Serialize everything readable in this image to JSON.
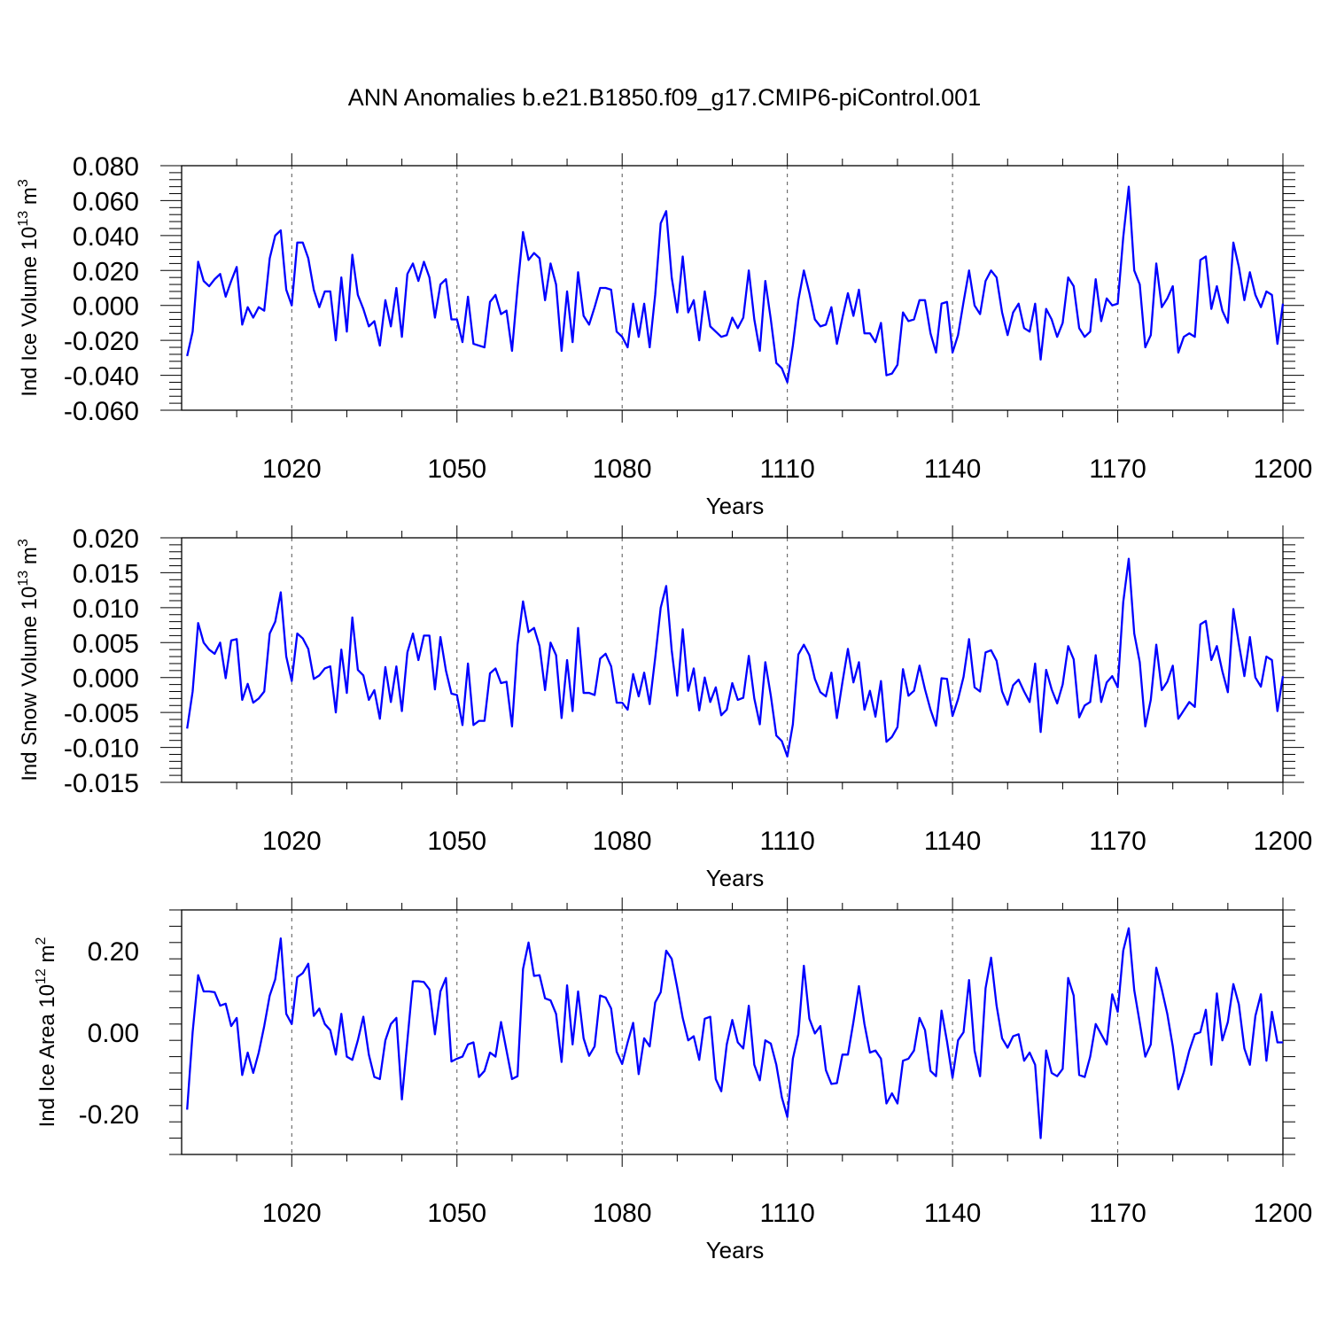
{
  "title": "ANN Anomalies b.e21.B1850.f09_g17.CMIP6-piControl.001",
  "colors": {
    "line": "#0000ff",
    "axis": "#000000",
    "grid": "#555555"
  },
  "chart_data": [
    {
      "type": "line",
      "ylabel": "Ind Ice Volume",
      "unit": {
        "base": "10",
        "exp": "13",
        "units": "m",
        "units_exp": "3"
      },
      "xlabel": "Years",
      "xlim": [
        1001,
        1200
      ],
      "ylim": [
        -0.06,
        0.08
      ],
      "xticks": [
        1020,
        1050,
        1080,
        1110,
        1140,
        1170,
        1200
      ],
      "xtick_labels": [
        "1020",
        "1050",
        "1080",
        "1110",
        "1140",
        "1170",
        "1200"
      ],
      "yticks": [
        -0.06,
        -0.04,
        -0.02,
        0.0,
        0.02,
        0.04,
        0.06,
        0.08
      ],
      "ytick_labels": [
        "-0.060",
        "-0.040",
        "-0.020",
        "0.000",
        "0.020",
        "0.040",
        "0.060",
        "0.080"
      ],
      "x_start": 1001,
      "series": [
        {
          "name": "Ind Ice Volume",
          "values": [
            -0.029,
            -0.015,
            0.025,
            0.014,
            0.011,
            0.015,
            0.018,
            0.005,
            0.014,
            0.022,
            -0.011,
            -0.001,
            -0.007,
            -0.001,
            -0.003,
            0.027,
            0.04,
            0.043,
            0.009,
            0.0,
            0.036,
            0.036,
            0.027,
            0.009,
            -0.001,
            0.008,
            0.008,
            -0.02,
            0.016,
            -0.015,
            0.029,
            0.006,
            -0.002,
            -0.012,
            -0.009,
            -0.023,
            0.003,
            -0.012,
            0.01,
            -0.018,
            0.018,
            0.024,
            0.014,
            0.025,
            0.016,
            -0.007,
            0.012,
            0.015,
            -0.008,
            -0.008,
            -0.021,
            0.005,
            -0.022,
            -0.023,
            -0.024,
            0.002,
            0.006,
            -0.005,
            -0.003,
            -0.026,
            0.01,
            0.042,
            0.026,
            0.03,
            0.027,
            0.003,
            0.024,
            0.012,
            -0.026,
            0.008,
            -0.021,
            0.019,
            -0.006,
            -0.011,
            -0.001,
            0.01,
            0.01,
            0.009,
            -0.015,
            -0.018,
            -0.024,
            0.001,
            -0.018,
            0.001,
            -0.024,
            0.006,
            0.047,
            0.054,
            0.016,
            -0.004,
            0.028,
            -0.004,
            0.003,
            -0.02,
            0.008,
            -0.012,
            -0.015,
            -0.018,
            -0.017,
            -0.007,
            -0.013,
            -0.007,
            0.02,
            -0.008,
            -0.026,
            0.014,
            -0.008,
            -0.033,
            -0.036,
            -0.044,
            -0.023,
            0.003,
            0.02,
            0.007,
            -0.008,
            -0.012,
            -0.011,
            -0.001,
            -0.022,
            -0.007,
            0.007,
            -0.006,
            0.009,
            -0.016,
            -0.016,
            -0.021,
            -0.01,
            -0.04,
            -0.039,
            -0.034,
            -0.004,
            -0.009,
            -0.008,
            0.003,
            0.003,
            -0.016,
            -0.027,
            0.001,
            0.002,
            -0.027,
            -0.017,
            0.002,
            0.02,
            0.0,
            -0.005,
            0.014,
            0.02,
            0.016,
            -0.004,
            -0.017,
            -0.004,
            0.001,
            -0.013,
            -0.015,
            0.001,
            -0.031,
            -0.002,
            -0.008,
            -0.018,
            -0.01,
            0.016,
            0.011,
            -0.013,
            -0.018,
            -0.015,
            0.015,
            -0.009,
            0.004,
            0.0,
            0.001,
            0.039,
            0.068,
            0.02,
            0.012,
            -0.024,
            -0.017,
            0.024,
            -0.001,
            0.004,
            0.011,
            -0.027,
            -0.018,
            -0.016,
            -0.018,
            0.026,
            0.028,
            -0.002,
            0.011,
            -0.003,
            -0.01,
            0.036,
            0.022,
            0.003,
            0.019,
            0.006,
            -0.001,
            0.008,
            0.006,
            -0.022,
            0.001
          ]
        }
      ]
    },
    {
      "type": "line",
      "ylabel": "Ind Snow Volume",
      "unit": {
        "base": "10",
        "exp": "13",
        "units": "m",
        "units_exp": "3"
      },
      "xlabel": "Years",
      "xlim": [
        1001,
        1200
      ],
      "ylim": [
        -0.015,
        0.02
      ],
      "xticks": [
        1020,
        1050,
        1080,
        1110,
        1140,
        1170,
        1200
      ],
      "xtick_labels": [
        "1020",
        "1050",
        "1080",
        "1110",
        "1140",
        "1170",
        "1200"
      ],
      "yticks": [
        -0.015,
        -0.01,
        -0.005,
        0.0,
        0.005,
        0.01,
        0.015,
        0.02
      ],
      "ytick_labels": [
        "-0.015",
        "-0.010",
        "-0.005",
        "0.000",
        "0.005",
        "0.010",
        "0.015",
        "0.020"
      ],
      "x_start": 1001,
      "series": [
        {
          "name": "Ind Snow Volume",
          "values": [
            -0.0073,
            -0.002,
            0.0078,
            0.005,
            0.004,
            0.0034,
            0.005,
            -0.0001,
            0.0053,
            0.0055,
            -0.0032,
            -0.0009,
            -0.0036,
            -0.003,
            -0.002,
            0.0063,
            0.008,
            0.0122,
            0.003,
            -0.0005,
            0.0063,
            0.0056,
            0.0041,
            -0.0002,
            0.0003,
            0.0013,
            0.0016,
            -0.005,
            0.004,
            -0.0022,
            0.0086,
            0.0011,
            0.0003,
            -0.0032,
            -0.0018,
            -0.0059,
            0.0015,
            -0.0035,
            0.0016,
            -0.0048,
            0.0036,
            0.0063,
            0.0025,
            0.006,
            0.006,
            -0.0017,
            0.0058,
            0.001,
            -0.0023,
            -0.0025,
            -0.0068,
            0.002,
            -0.0068,
            -0.0062,
            -0.0062,
            0.0006,
            0.0013,
            -0.0008,
            -0.0006,
            -0.007,
            0.0047,
            0.0109,
            0.0065,
            0.0071,
            0.0045,
            -0.0018,
            0.005,
            0.0032,
            -0.0058,
            0.0025,
            -0.0048,
            0.0071,
            -0.0022,
            -0.0022,
            -0.0025,
            0.0027,
            0.0034,
            0.0016,
            -0.0036,
            -0.0036,
            -0.0046,
            0.0005,
            -0.0027,
            0.0007,
            -0.0038,
            0.0028,
            0.01,
            0.0131,
            0.0039,
            -0.0026,
            0.0069,
            -0.0019,
            0.0013,
            -0.0047,
            0.0,
            -0.0035,
            -0.0014,
            -0.0054,
            -0.0046,
            -0.0008,
            -0.0032,
            -0.0029,
            0.0031,
            -0.003,
            -0.0067,
            0.0022,
            -0.0026,
            -0.0083,
            -0.0091,
            -0.0113,
            -0.0067,
            0.0033,
            0.0047,
            0.0032,
            -0.0002,
            -0.0021,
            -0.0027,
            0.0007,
            -0.0058,
            -0.0007,
            0.0041,
            -0.0007,
            0.0022,
            -0.0046,
            -0.0019,
            -0.0056,
            -0.0005,
            -0.0092,
            -0.0085,
            -0.0071,
            0.0012,
            -0.0026,
            -0.0019,
            0.0017,
            -0.0017,
            -0.0046,
            -0.0069,
            -0.0001,
            -0.0002,
            -0.0055,
            -0.0031,
            0.0001,
            0.0055,
            -0.0014,
            -0.002,
            0.0036,
            0.0039,
            0.0024,
            -0.002,
            -0.0039,
            -0.0011,
            -0.0003,
            -0.002,
            -0.0035,
            0.002,
            -0.0078,
            0.0011,
            -0.0017,
            -0.0037,
            -0.001,
            0.0045,
            0.0026,
            -0.0057,
            -0.004,
            -0.0035,
            0.0032,
            -0.0035,
            -0.0007,
            0.0002,
            -0.0014,
            0.0108,
            0.017,
            0.0063,
            0.0022,
            -0.007,
            -0.0032,
            0.0047,
            -0.0018,
            -0.0006,
            0.0017,
            -0.0059,
            -0.0047,
            -0.0035,
            -0.0042,
            0.0076,
            0.0081,
            0.0025,
            0.0045,
            0.0009,
            -0.0021,
            0.0098,
            0.0048,
            0.0002,
            0.0058,
            0.0,
            -0.0013,
            0.003,
            0.0025,
            -0.0048,
            0.0002
          ]
        }
      ]
    },
    {
      "type": "line",
      "ylabel": "Ind Ice Area",
      "unit": {
        "base": "10",
        "exp": "12",
        "units": "m",
        "units_exp": "2"
      },
      "xlabel": "Years",
      "xlim": [
        1001,
        1200
      ],
      "ylim": [
        -0.3,
        0.3
      ],
      "xticks": [
        1020,
        1050,
        1080,
        1110,
        1140,
        1170,
        1200
      ],
      "xtick_labels": [
        "1020",
        "1050",
        "1080",
        "1110",
        "1140",
        "1170",
        "1200"
      ],
      "yticks": [
        -0.2,
        0.0,
        0.2
      ],
      "ytick_labels": [
        "-0.20",
        "0.00",
        "0.20"
      ],
      "x_start": 1001,
      "series": [
        {
          "name": "Ind Ice Area",
          "values": [
            -0.19,
            0.0,
            0.14,
            0.1,
            0.1,
            0.098,
            0.065,
            0.07,
            0.015,
            0.035,
            -0.105,
            -0.05,
            -0.1,
            -0.05,
            0.015,
            0.09,
            0.13,
            0.23,
            0.045,
            0.02,
            0.135,
            0.145,
            0.168,
            0.04,
            0.058,
            0.02,
            0.005,
            -0.055,
            0.045,
            -0.06,
            -0.068,
            -0.02,
            0.038,
            -0.055,
            -0.11,
            -0.115,
            -0.02,
            0.02,
            0.035,
            -0.165,
            -0.02,
            0.125,
            0.125,
            0.123,
            0.105,
            -0.005,
            0.1,
            0.133,
            -0.072,
            -0.065,
            -0.06,
            -0.03,
            -0.025,
            -0.11,
            -0.095,
            -0.05,
            -0.06,
            0.025,
            -0.045,
            -0.115,
            -0.108,
            0.155,
            0.22,
            0.138,
            0.14,
            0.083,
            0.078,
            0.045,
            -0.073,
            0.115,
            -0.03,
            0.1,
            -0.015,
            -0.058,
            -0.035,
            0.09,
            0.085,
            0.058,
            -0.048,
            -0.078,
            -0.025,
            0.023,
            -0.103,
            -0.015,
            -0.035,
            0.073,
            0.098,
            0.2,
            0.18,
            0.11,
            0.035,
            -0.02,
            -0.01,
            -0.068,
            0.033,
            0.038,
            -0.115,
            -0.145,
            -0.03,
            0.03,
            -0.025,
            -0.04,
            0.065,
            -0.08,
            -0.118,
            -0.02,
            -0.028,
            -0.08,
            -0.16,
            -0.208,
            -0.065,
            -0.005,
            0.163,
            0.033,
            -0.003,
            0.015,
            -0.093,
            -0.127,
            -0.125,
            -0.055,
            -0.055,
            0.025,
            0.113,
            0.02,
            -0.05,
            -0.045,
            -0.065,
            -0.175,
            -0.15,
            -0.175,
            -0.07,
            -0.065,
            -0.045,
            0.035,
            0.005,
            -0.095,
            -0.108,
            0.053,
            -0.023,
            -0.112,
            -0.02,
            0.0,
            0.128,
            -0.045,
            -0.108,
            0.108,
            0.183,
            0.065,
            -0.015,
            -0.038,
            -0.01,
            -0.005,
            -0.07,
            -0.05,
            -0.08,
            -0.26,
            -0.045,
            -0.1,
            -0.108,
            -0.09,
            0.133,
            0.09,
            -0.105,
            -0.11,
            -0.06,
            0.02,
            -0.005,
            -0.03,
            0.093,
            0.05,
            0.2,
            0.255,
            0.103,
            0.023,
            -0.06,
            -0.03,
            0.158,
            0.105,
            0.045,
            -0.035,
            -0.14,
            -0.098,
            -0.045,
            -0.005,
            0.0,
            0.055,
            -0.08,
            0.095,
            -0.02,
            0.025,
            0.118,
            0.068,
            -0.04,
            -0.08,
            0.04,
            0.093,
            -0.07,
            0.05,
            -0.025,
            -0.025
          ]
        }
      ]
    }
  ]
}
